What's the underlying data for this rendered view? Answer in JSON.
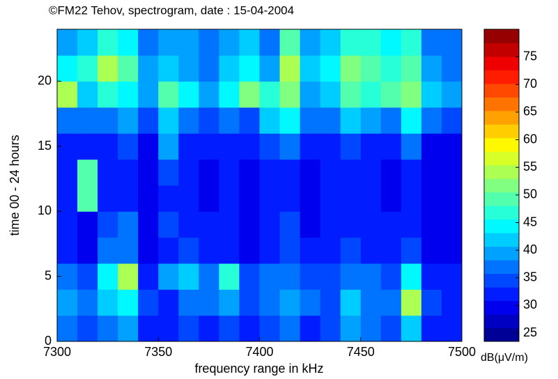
{
  "chart_data": {
    "type": "heatmap",
    "title": "©FM22 Tehov,  spectrogram,  date : 15-04-2004",
    "x_label": "frequency range in kHz",
    "y_label": "time  00 - 24 hours",
    "colorbar_label": "dB(μV/m)",
    "colormap": "jet",
    "colormap_levels": 23,
    "xbins": [
      7300,
      7310,
      7320,
      7330,
      7340,
      7350,
      7360,
      7370,
      7380,
      7390,
      7400,
      7410,
      7420,
      7430,
      7440,
      7450,
      7460,
      7470,
      7480,
      7490,
      7500
    ],
    "ybins": [
      0,
      2,
      4,
      6,
      8,
      10,
      12,
      14,
      16,
      18,
      20,
      22,
      24
    ],
    "values": [
      [
        36,
        34,
        38,
        40,
        33,
        32,
        34,
        33,
        34,
        32,
        35,
        38,
        33,
        34,
        40,
        36,
        34,
        42,
        33,
        32
      ],
      [
        40,
        36,
        42,
        45,
        34,
        33,
        38,
        36,
        40,
        34,
        38,
        40,
        36,
        35,
        42,
        38,
        36,
        55,
        34,
        33
      ],
      [
        38,
        34,
        45,
        55,
        33,
        40,
        42,
        36,
        48,
        35,
        36,
        38,
        34,
        35,
        38,
        36,
        34,
        45,
        33,
        32
      ],
      [
        33,
        30,
        36,
        36,
        30,
        32,
        35,
        32,
        33,
        30,
        32,
        34,
        31,
        32,
        34,
        33,
        31,
        34,
        30,
        30
      ],
      [
        32,
        30,
        34,
        38,
        30,
        34,
        32,
        31,
        33,
        30,
        31,
        34,
        30,
        31,
        33,
        32,
        31,
        33,
        30,
        30
      ],
      [
        31,
        50,
        32,
        33,
        30,
        32,
        31,
        30,
        33,
        30,
        31,
        32,
        30,
        31,
        32,
        31,
        30,
        32,
        30,
        30
      ],
      [
        31,
        50,
        31,
        33,
        30,
        34,
        31,
        30,
        32,
        30,
        31,
        32,
        30,
        31,
        32,
        31,
        30,
        32,
        30,
        30
      ],
      [
        32,
        33,
        33,
        34,
        30,
        40,
        33,
        31,
        33,
        31,
        34,
        36,
        31,
        32,
        34,
        33,
        31,
        38,
        30,
        30
      ],
      [
        38,
        36,
        38,
        40,
        34,
        42,
        36,
        35,
        38,
        35,
        42,
        45,
        36,
        38,
        42,
        40,
        38,
        45,
        36,
        34
      ],
      [
        55,
        42,
        48,
        45,
        40,
        50,
        44,
        40,
        45,
        52,
        48,
        52,
        40,
        42,
        50,
        46,
        50,
        52,
        42,
        40
      ],
      [
        45,
        48,
        55,
        50,
        40,
        42,
        40,
        38,
        42,
        44,
        40,
        55,
        42,
        44,
        52,
        50,
        48,
        50,
        40,
        38
      ],
      [
        40,
        42,
        48,
        45,
        38,
        40,
        40,
        36,
        40,
        42,
        38,
        50,
        40,
        42,
        48,
        46,
        44,
        48,
        38,
        36
      ]
    ],
    "xlim": [
      7300,
      7500
    ],
    "xticks": [
      7300,
      7350,
      7400,
      7450,
      7500
    ],
    "ylim": [
      0,
      24
    ],
    "yticks": [
      0,
      5,
      10,
      15,
      20
    ],
    "clim": [
      23.5,
      80
    ],
    "cticks": [
      25,
      30,
      35,
      40,
      45,
      50,
      55,
      60,
      65,
      70,
      75
    ]
  }
}
